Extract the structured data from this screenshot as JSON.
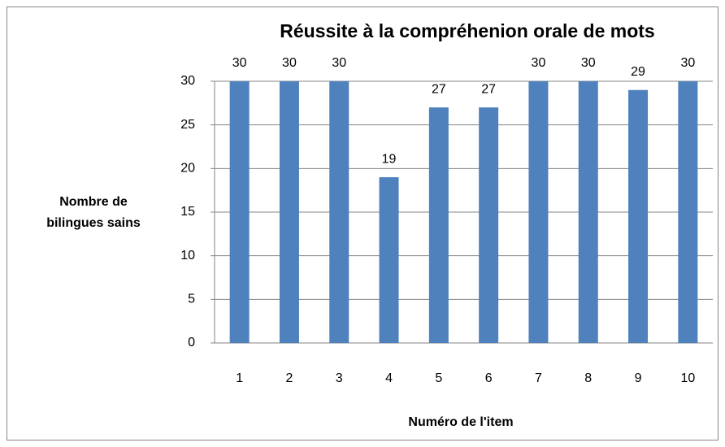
{
  "chart_data": {
    "type": "bar",
    "title": "Réussite à la compréhenion orale de mots",
    "y_label": "Nombre de bilingues sains",
    "x_label": "Numéro de l'item",
    "categories": [
      "1",
      "2",
      "3",
      "4",
      "5",
      "6",
      "7",
      "8",
      "9",
      "10"
    ],
    "values": [
      30,
      30,
      30,
      19,
      27,
      27,
      30,
      30,
      29,
      30
    ],
    "color": "#4f81bd",
    "ylim": [
      0,
      30
    ],
    "yticks": [
      0,
      5,
      10,
      15,
      20,
      25,
      30
    ],
    "grid": true
  }
}
